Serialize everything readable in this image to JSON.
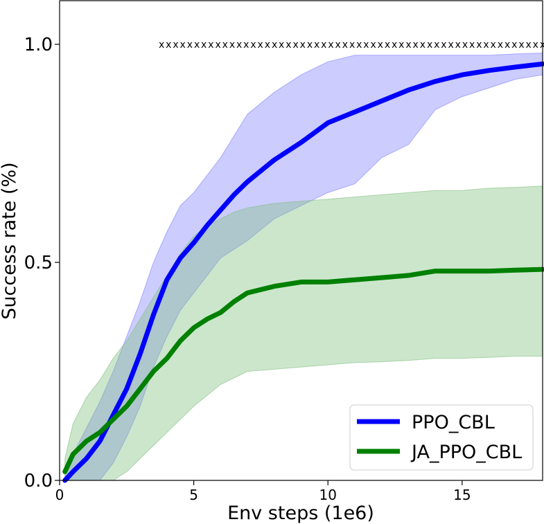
{
  "chart_data": {
    "type": "line",
    "title": "",
    "xlabel": "Env steps (1e6)",
    "ylabel": "Success rate (%)",
    "xlim": [
      0,
      18
    ],
    "ylim": [
      0.0,
      1.1
    ],
    "x_ticks": [
      0,
      5,
      10,
      15
    ],
    "x_tick_labels": [
      "0",
      "5",
      "10",
      "15"
    ],
    "y_ticks": [
      0.0,
      0.5,
      1.0
    ],
    "y_tick_labels": [
      "0.0",
      "0.5",
      "1.0"
    ],
    "grid": false,
    "legend_position": "bottom-right",
    "x": [
      0.2,
      0.5,
      1.0,
      1.5,
      2.0,
      2.5,
      3.0,
      3.5,
      4.0,
      4.5,
      5.0,
      5.5,
      6.0,
      6.5,
      7.0,
      8.0,
      9.0,
      10.0,
      11.0,
      12.0,
      13.0,
      14.0,
      15.0,
      16.0,
      17.0,
      18.0
    ],
    "series": [
      {
        "name": "PPO_CBL",
        "color": "#0000ff",
        "band_color": "#8080ff",
        "mean": [
          0.0,
          0.02,
          0.05,
          0.09,
          0.15,
          0.21,
          0.29,
          0.38,
          0.46,
          0.51,
          0.545,
          0.585,
          0.62,
          0.655,
          0.685,
          0.735,
          0.775,
          0.82,
          0.845,
          0.87,
          0.895,
          0.915,
          0.93,
          0.94,
          0.948,
          0.955
        ],
        "lower": [
          0.0,
          0.0,
          0.0,
          0.0,
          0.04,
          0.1,
          0.17,
          0.26,
          0.33,
          0.39,
          0.43,
          0.47,
          0.51,
          0.53,
          0.55,
          0.6,
          0.63,
          0.66,
          0.68,
          0.74,
          0.77,
          0.85,
          0.88,
          0.9,
          0.92,
          0.93
        ],
        "upper": [
          0.01,
          0.06,
          0.12,
          0.18,
          0.25,
          0.33,
          0.41,
          0.5,
          0.57,
          0.63,
          0.66,
          0.7,
          0.74,
          0.79,
          0.84,
          0.89,
          0.93,
          0.96,
          0.975,
          0.975,
          0.975,
          0.975,
          0.975,
          0.975,
          0.978,
          0.98
        ]
      },
      {
        "name": "JA_PPO_CBL",
        "color": "#008000",
        "band_color": "#80c080",
        "mean": [
          0.02,
          0.06,
          0.09,
          0.11,
          0.14,
          0.17,
          0.21,
          0.25,
          0.28,
          0.32,
          0.35,
          0.37,
          0.385,
          0.41,
          0.43,
          0.445,
          0.455,
          0.455,
          0.46,
          0.465,
          0.47,
          0.48,
          0.48,
          0.48,
          0.482,
          0.484
        ],
        "lower": [
          0.0,
          0.0,
          0.0,
          0.0,
          0.0,
          0.02,
          0.05,
          0.08,
          0.11,
          0.14,
          0.17,
          0.195,
          0.22,
          0.235,
          0.25,
          0.255,
          0.26,
          0.265,
          0.27,
          0.272,
          0.275,
          0.28,
          0.28,
          0.282,
          0.285,
          0.285
        ],
        "upper": [
          0.05,
          0.13,
          0.19,
          0.23,
          0.28,
          0.32,
          0.37,
          0.42,
          0.47,
          0.52,
          0.56,
          0.585,
          0.6,
          0.615,
          0.625,
          0.635,
          0.64,
          0.645,
          0.65,
          0.655,
          0.66,
          0.665,
          0.665,
          0.67,
          0.672,
          0.675
        ]
      }
    ],
    "annotations": {
      "significance_marker": "x",
      "significance_y": 1.0,
      "significance_x_start": 3.8,
      "significance_x_end": 18.0,
      "significance_count": 55
    }
  }
}
